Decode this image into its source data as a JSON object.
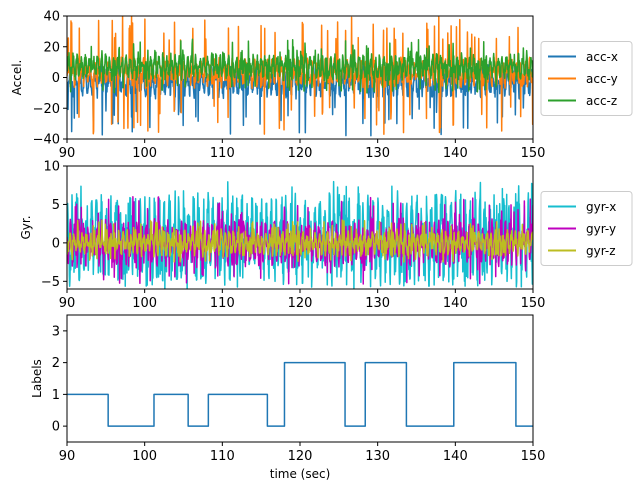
{
  "chart_data": [
    {
      "type": "line",
      "ylabel": "Accel.",
      "xlim": [
        90,
        150
      ],
      "ylim": [
        -40,
        40
      ],
      "xticks": [
        90,
        100,
        110,
        120,
        130,
        140,
        150
      ],
      "yticks": [
        -40,
        -20,
        0,
        20,
        40
      ],
      "legend": "right-outside",
      "series": [
        {
          "name": "acc-x",
          "color": "#1f77b4",
          "baseline": -3,
          "amplitude": 10,
          "spike_min": -38,
          "spike_max": 10
        },
        {
          "name": "acc-y",
          "color": "#ff7f0e",
          "baseline": 3,
          "amplitude": 9,
          "spike_min": -37,
          "spike_max": 40
        },
        {
          "name": "acc-z",
          "color": "#2ca02c",
          "baseline": 7,
          "amplitude": 8,
          "spike_min": -10,
          "spike_max": 25
        }
      ]
    },
    {
      "type": "line",
      "ylabel": "Gyr.",
      "xlim": [
        90,
        150
      ],
      "ylim": [
        -6,
        10
      ],
      "xticks": [
        90,
        100,
        110,
        120,
        130,
        140,
        150
      ],
      "yticks": [
        -5,
        0,
        5,
        10
      ],
      "legend": "right-outside",
      "series": [
        {
          "name": "gyr-x",
          "color": "#17becf",
          "baseline": 0.5,
          "amplitude": 5.5,
          "spike_min": -6,
          "spike_max": 8
        },
        {
          "name": "gyr-y",
          "color": "#bf00bf",
          "baseline": 0,
          "amplitude": 2.8,
          "spike_min": -5.5,
          "spike_max": 6
        },
        {
          "name": "gyr-z",
          "color": "#bcbd22",
          "baseline": 0,
          "amplitude": 1.6,
          "spike_min": -2.5,
          "spike_max": 3
        }
      ]
    },
    {
      "type": "line",
      "ylabel": "Labels",
      "xlabel": "time (sec)",
      "xlim": [
        90,
        150
      ],
      "ylim": [
        -0.5,
        3.5
      ],
      "xticks": [
        90,
        100,
        110,
        120,
        130,
        140,
        150
      ],
      "yticks": [
        0,
        1,
        2,
        3
      ],
      "series": [
        {
          "color": "#1f77b4",
          "steps": [
            {
              "from": 90,
              "to": 95.3,
              "value": 1
            },
            {
              "from": 95.3,
              "to": 101.2,
              "value": 0
            },
            {
              "from": 101.2,
              "to": 105.6,
              "value": 1
            },
            {
              "from": 105.6,
              "to": 108.2,
              "value": 0
            },
            {
              "from": 108.2,
              "to": 115.8,
              "value": 1
            },
            {
              "from": 115.8,
              "to": 118.0,
              "value": 0
            },
            {
              "from": 118.0,
              "to": 125.8,
              "value": 2
            },
            {
              "from": 125.8,
              "to": 128.4,
              "value": 0
            },
            {
              "from": 128.4,
              "to": 133.7,
              "value": 2
            },
            {
              "from": 133.7,
              "to": 139.8,
              "value": 0
            },
            {
              "from": 139.8,
              "to": 147.8,
              "value": 2
            },
            {
              "from": 147.8,
              "to": 150,
              "value": 0
            }
          ]
        }
      ]
    }
  ]
}
